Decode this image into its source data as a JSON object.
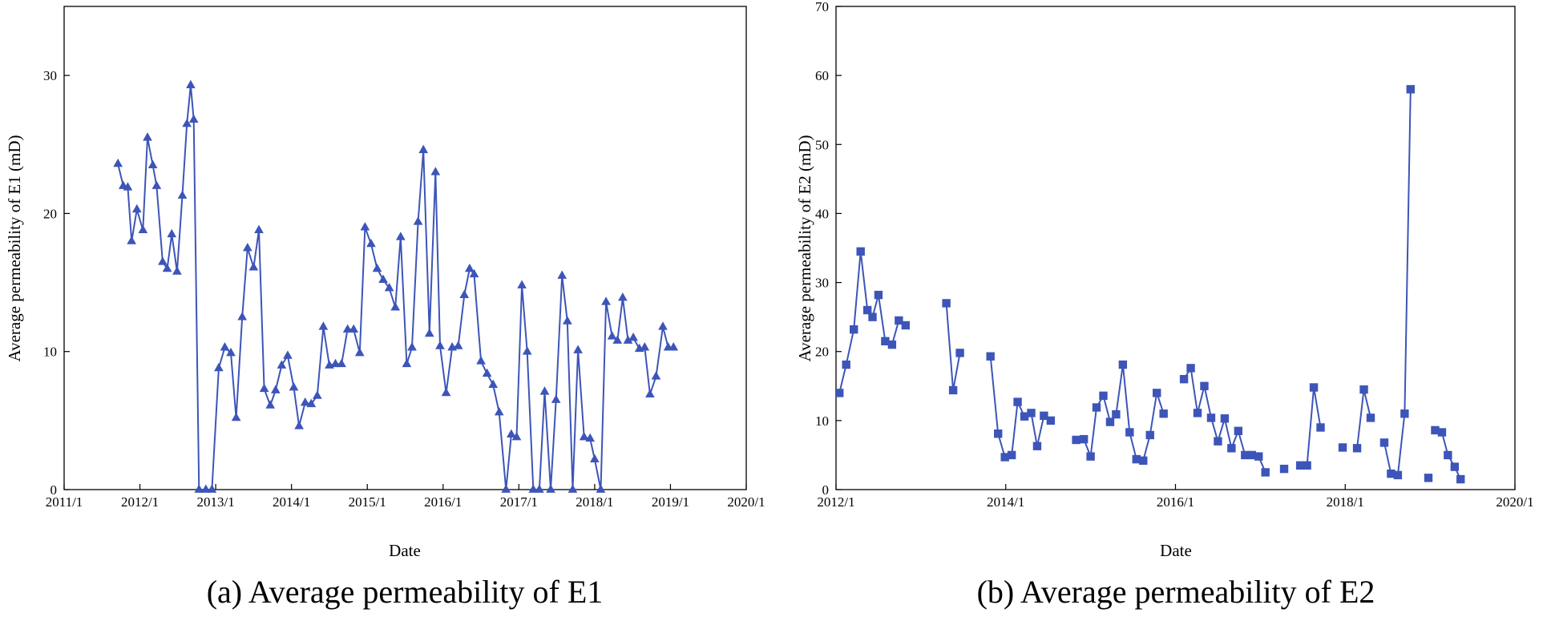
{
  "chart_data": [
    {
      "type": "line",
      "marker": "triangle",
      "color": "#3d55b8",
      "caption": "(a) Average permeability of E1",
      "xlabel": "Date",
      "ylabel": "Average permeability of E1 (mD)",
      "xlim": [
        2011.0,
        2020.0
      ],
      "ylim": [
        0,
        35
      ],
      "xticks": [
        2011.0,
        2012.0,
        2013.0,
        2014.0,
        2015.0,
        2016.0,
        2017.0,
        2018.0,
        2019.0,
        2020.0
      ],
      "xtick_labels": [
        "2011/1",
        "2012/1",
        "2013/1",
        "2014/1",
        "2015/1",
        "2016/1",
        "2017/1",
        "2018/1",
        "2019/1",
        "2020/1"
      ],
      "yticks": [
        0,
        10,
        20,
        30
      ],
      "ytick_labels": [
        "0",
        "10",
        "20",
        "30"
      ],
      "grid": false,
      "series": [
        {
          "name": "E1",
          "points": [
            [
              2011.71,
              23.6
            ],
            [
              2011.78,
              22.0
            ],
            [
              2011.84,
              21.9
            ],
            [
              2011.89,
              18.0
            ],
            [
              2011.96,
              20.3
            ],
            [
              2012.04,
              18.8
            ],
            [
              2012.1,
              25.5
            ],
            [
              2012.17,
              23.5
            ],
            [
              2012.22,
              22.0
            ],
            [
              2012.3,
              16.5
            ],
            [
              2012.36,
              16.0
            ],
            [
              2012.42,
              18.5
            ],
            [
              2012.49,
              15.8
            ],
            [
              2012.56,
              21.3
            ],
            [
              2012.62,
              26.5
            ],
            [
              2012.67,
              29.3
            ],
            [
              2012.71,
              26.8
            ],
            [
              2012.78,
              0
            ],
            [
              2012.87,
              0
            ],
            [
              2012.95,
              0
            ],
            [
              2013.04,
              8.8
            ],
            [
              2013.12,
              10.3
            ],
            [
              2013.2,
              9.9
            ],
            [
              2013.27,
              5.2
            ],
            [
              2013.35,
              12.5
            ],
            [
              2013.42,
              17.5
            ],
            [
              2013.5,
              16.1
            ],
            [
              2013.57,
              18.8
            ],
            [
              2013.64,
              7.3
            ],
            [
              2013.72,
              6.1
            ],
            [
              2013.79,
              7.2
            ],
            [
              2013.87,
              9.0
            ],
            [
              2013.95,
              9.7
            ],
            [
              2014.03,
              7.4
            ],
            [
              2014.1,
              4.6
            ],
            [
              2014.18,
              6.3
            ],
            [
              2014.26,
              6.2
            ],
            [
              2014.34,
              6.8
            ],
            [
              2014.42,
              11.8
            ],
            [
              2014.5,
              9.0
            ],
            [
              2014.58,
              9.1
            ],
            [
              2014.66,
              9.1
            ],
            [
              2014.74,
              11.6
            ],
            [
              2014.82,
              11.6
            ],
            [
              2014.9,
              9.9
            ],
            [
              2014.97,
              19.0
            ],
            [
              2015.05,
              17.8
            ],
            [
              2015.13,
              16.0
            ],
            [
              2015.21,
              15.2
            ],
            [
              2015.29,
              14.6
            ],
            [
              2015.37,
              13.2
            ],
            [
              2015.44,
              18.3
            ],
            [
              2015.52,
              9.1
            ],
            [
              2015.59,
              10.3
            ],
            [
              2015.67,
              19.4
            ],
            [
              2015.74,
              24.6
            ],
            [
              2015.82,
              11.3
            ],
            [
              2015.9,
              23.0
            ],
            [
              2015.96,
              10.4
            ],
            [
              2016.04,
              7.0
            ],
            [
              2016.12,
              10.3
            ],
            [
              2016.2,
              10.4
            ],
            [
              2016.28,
              14.1
            ],
            [
              2016.35,
              16.0
            ],
            [
              2016.41,
              15.6
            ],
            [
              2016.5,
              9.3
            ],
            [
              2016.58,
              8.4
            ],
            [
              2016.66,
              7.6
            ],
            [
              2016.74,
              5.6
            ],
            [
              2016.83,
              0
            ],
            [
              2016.9,
              4.0
            ],
            [
              2016.97,
              3.8
            ],
            [
              2017.04,
              14.8
            ],
            [
              2017.11,
              10.0
            ],
            [
              2017.19,
              0
            ],
            [
              2017.27,
              0
            ],
            [
              2017.34,
              7.1
            ],
            [
              2017.42,
              0
            ],
            [
              2017.49,
              6.5
            ],
            [
              2017.57,
              15.5
            ],
            [
              2017.64,
              12.2
            ],
            [
              2017.71,
              0
            ],
            [
              2017.78,
              10.1
            ],
            [
              2017.86,
              3.8
            ],
            [
              2017.94,
              3.7
            ],
            [
              2018.0,
              2.2
            ],
            [
              2018.08,
              0
            ],
            [
              2018.15,
              13.6
            ],
            [
              2018.23,
              11.1
            ],
            [
              2018.3,
              10.8
            ],
            [
              2018.37,
              13.9
            ],
            [
              2018.44,
              10.8
            ],
            [
              2018.51,
              11.0
            ],
            [
              2018.59,
              10.2
            ],
            [
              2018.66,
              10.3
            ],
            [
              2018.73,
              6.9
            ],
            [
              2018.81,
              8.2
            ],
            [
              2018.9,
              11.8
            ],
            [
              2018.97,
              10.3
            ],
            [
              2019.04,
              10.3
            ]
          ]
        }
      ]
    },
    {
      "type": "line",
      "marker": "square",
      "color": "#3d55b8",
      "caption": "(b) Average permeability of E2",
      "xlabel": "Date",
      "ylabel": "Average permeability of E2 (mD)",
      "xlim": [
        2012.0,
        2020.0
      ],
      "ylim": [
        0,
        70
      ],
      "xticks": [
        2012.0,
        2014.0,
        2016.0,
        2018.0,
        2020.0
      ],
      "xtick_labels": [
        "2012/1",
        "2014/1",
        "2016/1",
        "2018/1",
        "2020/1"
      ],
      "yticks": [
        0,
        10,
        20,
        30,
        40,
        50,
        60,
        70
      ],
      "ytick_labels": [
        "0",
        "10",
        "20",
        "30",
        "40",
        "50",
        "60",
        "70"
      ],
      "grid": false,
      "series": [
        {
          "name": "E2",
          "segments": [
            [
              [
                2012.04,
                14.0
              ],
              [
                2012.12,
                18.1
              ],
              [
                2012.21,
                23.2
              ],
              [
                2012.29,
                34.5
              ],
              [
                2012.37,
                26.0
              ],
              [
                2012.43,
                25.0
              ],
              [
                2012.5,
                28.2
              ],
              [
                2012.58,
                21.5
              ],
              [
                2012.66,
                21.0
              ],
              [
                2012.74,
                24.5
              ],
              [
                2012.82,
                23.8
              ]
            ],
            [
              [
                2013.3,
                27.0
              ],
              [
                2013.38,
                14.4
              ],
              [
                2013.46,
                19.8
              ]
            ],
            [
              [
                2013.82,
                19.3
              ],
              [
                2013.91,
                8.1
              ],
              [
                2013.99,
                4.7
              ],
              [
                2014.07,
                5.0
              ],
              [
                2014.14,
                12.7
              ],
              [
                2014.22,
                10.6
              ],
              [
                2014.3,
                11.1
              ],
              [
                2014.37,
                6.3
              ],
              [
                2014.45,
                10.7
              ],
              [
                2014.53,
                10.0
              ]
            ],
            [
              [
                2014.83,
                7.2
              ],
              [
                2014.92,
                7.3
              ],
              [
                2015.0,
                4.8
              ],
              [
                2015.07,
                11.9
              ],
              [
                2015.15,
                13.6
              ],
              [
                2015.23,
                9.8
              ],
              [
                2015.3,
                10.9
              ],
              [
                2015.38,
                18.1
              ],
              [
                2015.46,
                8.3
              ],
              [
                2015.54,
                4.4
              ],
              [
                2015.62,
                4.2
              ],
              [
                2015.7,
                7.9
              ],
              [
                2015.78,
                14.0
              ],
              [
                2015.86,
                11.0
              ]
            ],
            [
              [
                2016.1,
                16.0
              ],
              [
                2016.18,
                17.6
              ],
              [
                2016.26,
                11.1
              ],
              [
                2016.34,
                15.0
              ],
              [
                2016.42,
                10.4
              ],
              [
                2016.5,
                7.0
              ],
              [
                2016.58,
                10.3
              ],
              [
                2016.66,
                6.0
              ],
              [
                2016.74,
                8.5
              ],
              [
                2016.82,
                5.0
              ],
              [
                2016.9,
                5.0
              ],
              [
                2016.98,
                4.8
              ],
              [
                2017.06,
                2.5
              ]
            ],
            [
              [
                2017.28,
                3.0
              ]
            ],
            [
              [
                2017.47,
                3.5
              ],
              [
                2017.55,
                3.5
              ],
              [
                2017.63,
                14.8
              ],
              [
                2017.71,
                9.0
              ]
            ],
            [
              [
                2017.97,
                6.1
              ]
            ],
            [
              [
                2018.14,
                6.0
              ],
              [
                2018.22,
                14.5
              ],
              [
                2018.3,
                10.4
              ]
            ],
            [
              [
                2018.46,
                6.8
              ],
              [
                2018.54,
                2.3
              ],
              [
                2018.62,
                2.1
              ],
              [
                2018.7,
                11.0
              ],
              [
                2018.77,
                58.0
              ]
            ],
            [
              [
                2018.98,
                1.7
              ]
            ],
            [
              [
                2019.06,
                8.6
              ],
              [
                2019.14,
                8.3
              ],
              [
                2019.21,
                5.0
              ],
              [
                2019.29,
                3.3
              ],
              [
                2019.36,
                1.5
              ]
            ]
          ]
        }
      ]
    }
  ]
}
